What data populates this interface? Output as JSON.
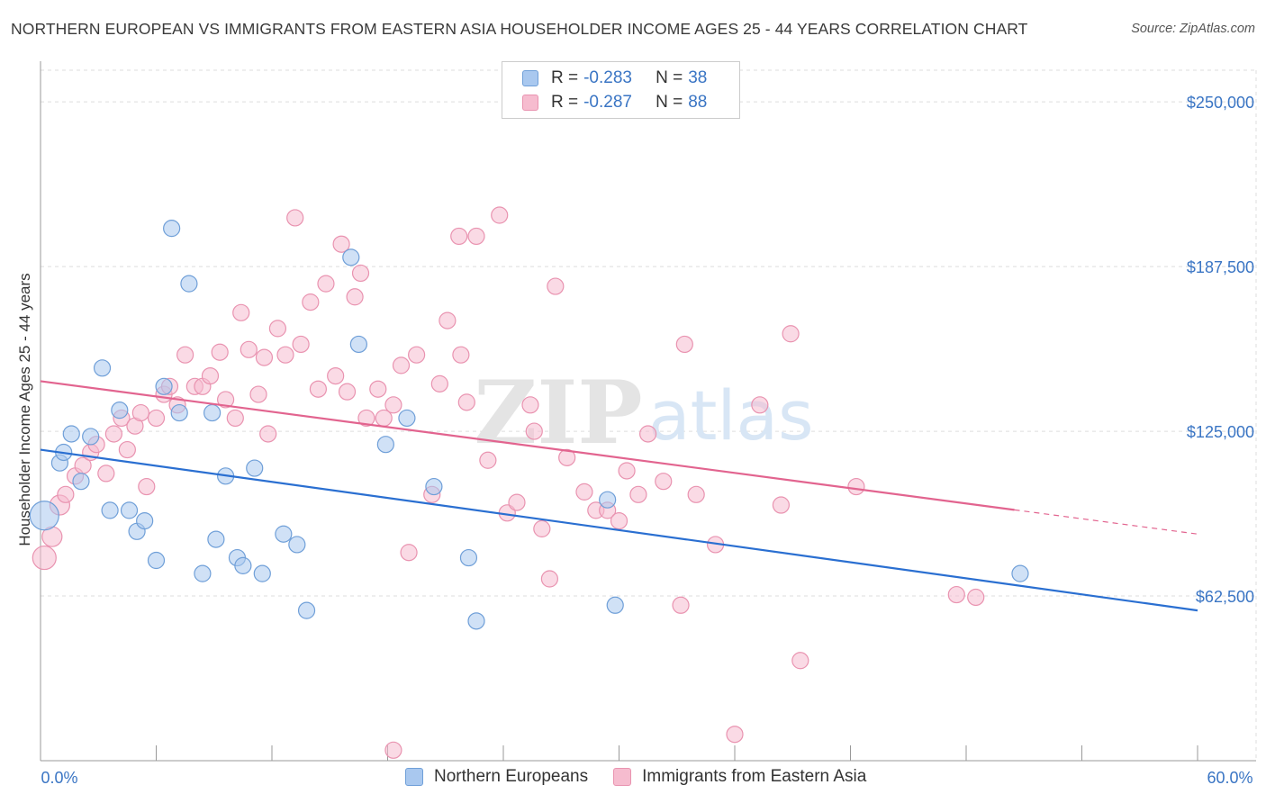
{
  "header": {
    "title": "NORTHERN EUROPEAN VS IMMIGRANTS FROM EASTERN ASIA HOUSEHOLDER INCOME AGES 25 - 44 YEARS CORRELATION CHART",
    "source": "Source: ZipAtlas.com"
  },
  "watermark": {
    "zip": "ZIP",
    "atlas": "atlas"
  },
  "legend": {
    "rows": [
      {
        "r_label": "R =",
        "r_value": "-0.283",
        "n_label": "N =",
        "n_value": "38"
      },
      {
        "r_label": "R =",
        "r_value": "-0.287",
        "n_label": "N =",
        "n_value": "88"
      }
    ]
  },
  "bottom_legend": {
    "series1": "Northern Europeans",
    "series2": "Immigrants from Eastern Asia"
  },
  "colors": {
    "blue_fill": "#a9c8ef",
    "blue_stroke": "#6f9fd8",
    "blue_line": "#2a6fd1",
    "pink_fill": "#f6bccf",
    "pink_stroke": "#e993b0",
    "pink_line": "#e2648f",
    "tick_text": "#3a75c4",
    "grid": "#dddddd"
  },
  "chart_data": {
    "type": "scatter",
    "title": "NORTHERN EUROPEAN VS IMMIGRANTS FROM EASTERN ASIA HOUSEHOLDER INCOME AGES 25 - 44 YEARS CORRELATION CHART",
    "xlabel": "",
    "ylabel": "Householder Income Ages 25 - 44 years",
    "xlim": [
      0,
      60
    ],
    "ylim": [
      0,
      262000
    ],
    "x_tick_labels": {
      "min": "0.0%",
      "max": "60.0%"
    },
    "y_ticks": [
      {
        "value": 62500,
        "label": "$62,500"
      },
      {
        "value": 125000,
        "label": "$125,000"
      },
      {
        "value": 187500,
        "label": "$187,500"
      },
      {
        "value": 250000,
        "label": "$250,000"
      }
    ],
    "series": [
      {
        "name": "Northern Europeans",
        "color": "#6f9fd8",
        "trend": {
          "x0": 0,
          "y0": 118000,
          "x1": 60,
          "y1": 57000,
          "solid_until": 60
        },
        "points": [
          [
            0.2,
            93000,
            16
          ],
          [
            1.0,
            113000,
            9
          ],
          [
            1.2,
            117000,
            9
          ],
          [
            1.6,
            124000,
            9
          ],
          [
            2.1,
            106000,
            9
          ],
          [
            2.6,
            123000,
            9
          ],
          [
            3.2,
            149000,
            9
          ],
          [
            3.6,
            95000,
            9
          ],
          [
            4.1,
            133000,
            9
          ],
          [
            4.6,
            95000,
            9
          ],
          [
            5.0,
            87000,
            9
          ],
          [
            5.4,
            91000,
            9
          ],
          [
            6.0,
            76000,
            9
          ],
          [
            6.4,
            142000,
            9
          ],
          [
            6.8,
            202000,
            9
          ],
          [
            7.2,
            132000,
            9
          ],
          [
            7.7,
            181000,
            9
          ],
          [
            8.4,
            71000,
            9
          ],
          [
            8.9,
            132000,
            9
          ],
          [
            9.1,
            84000,
            9
          ],
          [
            9.6,
            108000,
            9
          ],
          [
            10.2,
            77000,
            9
          ],
          [
            10.5,
            74000,
            9
          ],
          [
            11.1,
            111000,
            9
          ],
          [
            11.5,
            71000,
            9
          ],
          [
            12.6,
            86000,
            9
          ],
          [
            13.3,
            82000,
            9
          ],
          [
            13.8,
            57000,
            9
          ],
          [
            16.1,
            191000,
            9
          ],
          [
            16.5,
            158000,
            9
          ],
          [
            17.9,
            120000,
            9
          ],
          [
            19.0,
            130000,
            9
          ],
          [
            20.4,
            104000,
            9
          ],
          [
            22.2,
            77000,
            9
          ],
          [
            22.6,
            53000,
            9
          ],
          [
            29.4,
            99000,
            9
          ],
          [
            29.8,
            59000,
            9
          ],
          [
            50.8,
            71000,
            9
          ]
        ]
      },
      {
        "name": "Immigrants from Eastern Asia",
        "color": "#e993b0",
        "trend": {
          "x0": 0,
          "y0": 144000,
          "x1": 60,
          "y1": 86000,
          "solid_until": 50.5
        },
        "points": [
          [
            0.2,
            77000,
            13
          ],
          [
            0.6,
            85000,
            11
          ],
          [
            1.0,
            97000,
            11
          ],
          [
            1.3,
            101000,
            9
          ],
          [
            1.8,
            108000,
            9
          ],
          [
            2.2,
            112000,
            9
          ],
          [
            2.6,
            117000,
            9
          ],
          [
            2.9,
            120000,
            9
          ],
          [
            3.4,
            109000,
            9
          ],
          [
            3.8,
            124000,
            9
          ],
          [
            4.2,
            130000,
            9
          ],
          [
            4.5,
            118000,
            9
          ],
          [
            4.9,
            127000,
            9
          ],
          [
            5.2,
            132000,
            9
          ],
          [
            5.5,
            104000,
            9
          ],
          [
            6.0,
            130000,
            9
          ],
          [
            6.4,
            139000,
            9
          ],
          [
            6.7,
            142000,
            9
          ],
          [
            7.1,
            135000,
            9
          ],
          [
            7.5,
            154000,
            9
          ],
          [
            8.0,
            142000,
            9
          ],
          [
            8.4,
            142000,
            9
          ],
          [
            8.8,
            146000,
            9
          ],
          [
            9.3,
            155000,
            9
          ],
          [
            9.6,
            137000,
            9
          ],
          [
            10.1,
            130000,
            9
          ],
          [
            10.4,
            170000,
            9
          ],
          [
            10.8,
            156000,
            9
          ],
          [
            11.3,
            139000,
            9
          ],
          [
            11.6,
            153000,
            9
          ],
          [
            11.8,
            124000,
            9
          ],
          [
            12.3,
            164000,
            9
          ],
          [
            12.7,
            154000,
            9
          ],
          [
            13.2,
            206000,
            9
          ],
          [
            13.5,
            158000,
            9
          ],
          [
            14.0,
            174000,
            9
          ],
          [
            14.4,
            141000,
            9
          ],
          [
            14.8,
            181000,
            9
          ],
          [
            15.3,
            146000,
            9
          ],
          [
            15.6,
            196000,
            9
          ],
          [
            15.9,
            140000,
            9
          ],
          [
            16.3,
            176000,
            9
          ],
          [
            16.6,
            185000,
            9
          ],
          [
            16.9,
            130000,
            9
          ],
          [
            17.5,
            141000,
            9
          ],
          [
            17.8,
            130000,
            9
          ],
          [
            18.3,
            135000,
            9
          ],
          [
            18.7,
            150000,
            9
          ],
          [
            19.1,
            79000,
            9
          ],
          [
            19.5,
            154000,
            9
          ],
          [
            20.3,
            101000,
            9
          ],
          [
            20.7,
            143000,
            9
          ],
          [
            21.1,
            167000,
            9
          ],
          [
            21.7,
            199000,
            9
          ],
          [
            21.8,
            154000,
            9
          ],
          [
            22.1,
            136000,
            9
          ],
          [
            22.6,
            199000,
            9
          ],
          [
            23.2,
            114000,
            9
          ],
          [
            23.8,
            207000,
            9
          ],
          [
            24.2,
            94000,
            9
          ],
          [
            24.7,
            98000,
            9
          ],
          [
            25.4,
            135000,
            9
          ],
          [
            25.6,
            125000,
            9
          ],
          [
            26.0,
            88000,
            9
          ],
          [
            26.4,
            69000,
            9
          ],
          [
            26.7,
            180000,
            9
          ],
          [
            27.3,
            115000,
            9
          ],
          [
            28.2,
            102000,
            9
          ],
          [
            28.8,
            95000,
            9
          ],
          [
            29.4,
            95000,
            9
          ],
          [
            30.0,
            91000,
            9
          ],
          [
            30.4,
            110000,
            9
          ],
          [
            31.0,
            101000,
            9
          ],
          [
            31.5,
            124000,
            9
          ],
          [
            32.3,
            106000,
            9
          ],
          [
            33.2,
            59000,
            9
          ],
          [
            33.4,
            158000,
            9
          ],
          [
            34.0,
            101000,
            9
          ],
          [
            35.0,
            82000,
            9
          ],
          [
            36.0,
            10000,
            9
          ],
          [
            37.3,
            135000,
            9
          ],
          [
            38.4,
            97000,
            9
          ],
          [
            38.9,
            162000,
            9
          ],
          [
            39.4,
            38000,
            9
          ],
          [
            42.3,
            104000,
            9
          ],
          [
            47.5,
            63000,
            9
          ],
          [
            48.5,
            62000,
            9
          ],
          [
            18.3,
            4000,
            9
          ]
        ]
      }
    ]
  }
}
